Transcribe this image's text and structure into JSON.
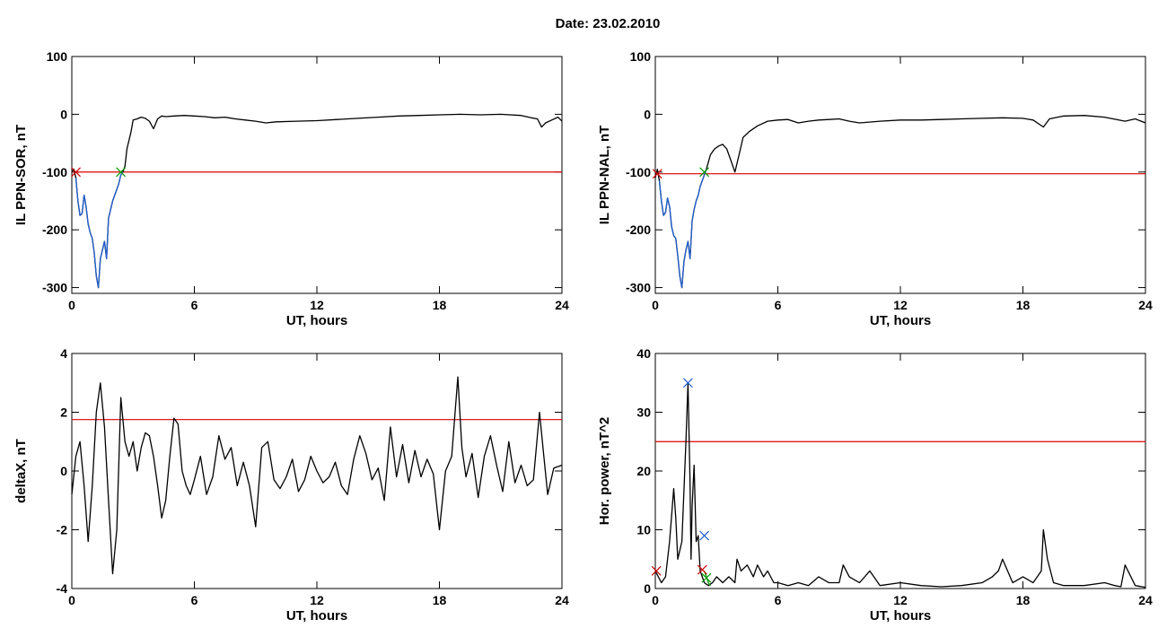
{
  "title": "Date:  23.02.2010",
  "chart_data": [
    {
      "type": "line",
      "title": "",
      "xlabel": "UT, hours",
      "ylabel": "IL PPN-SOR, nT",
      "xlim": [
        0,
        24
      ],
      "ylim": [
        -310,
        100
      ],
      "xticks": [
        0,
        6,
        12,
        18,
        24
      ],
      "yticks": [
        100,
        0,
        -100,
        -200,
        -300
      ],
      "threshold": -100,
      "series": [
        {
          "color": "#000000",
          "x": [
            0,
            0.1,
            0.2,
            0.3,
            0.4,
            0.5,
            0.6,
            0.7,
            0.8,
            0.9,
            1.0,
            1.1,
            1.2,
            1.3,
            1.4,
            1.5,
            1.6,
            1.7,
            1.8,
            1.9,
            2.0,
            2.1,
            2.2,
            2.3,
            2.4,
            2.5,
            2.6,
            2.7,
            2.8,
            2.9,
            3.0,
            3.2,
            3.4,
            3.6,
            3.8,
            4.0,
            4.2,
            4.4,
            4.6,
            5.0,
            5.5,
            6.0,
            6.5,
            7.0,
            7.5,
            8.0,
            8.5,
            9.0,
            9.5,
            10.0,
            11.0,
            12.0,
            13.0,
            14.0,
            15.0,
            16.0,
            17.0,
            18.0,
            19.0,
            20.0,
            21.0,
            22.0,
            22.5,
            22.8,
            23.0,
            23.2,
            23.5,
            23.8,
            24.0
          ],
          "y": [
            -100,
            -95,
            -110,
            -150,
            -175,
            -172,
            -140,
            -160,
            -190,
            -205,
            -215,
            -240,
            -280,
            -300,
            -250,
            -235,
            -220,
            -250,
            -180,
            -165,
            -150,
            -140,
            -130,
            -120,
            -105,
            -100,
            -90,
            -60,
            -45,
            -30,
            -10,
            -8,
            -5,
            -7,
            -12,
            -25,
            -8,
            -3,
            -4,
            -3,
            -2,
            -3,
            -4,
            -6,
            -5,
            -8,
            -10,
            -12,
            -15,
            -13,
            -12,
            -11,
            -9,
            -7,
            -5,
            -3,
            -2,
            -1,
            0,
            -1,
            0,
            -2,
            -6,
            -8,
            -22,
            -15,
            -10,
            -5,
            -12
          ]
        },
        {
          "color": "#1f5fcf",
          "x": [
            0.2,
            0.3,
            0.4,
            0.5,
            0.6,
            0.7,
            0.8,
            0.9,
            1.0,
            1.1,
            1.2,
            1.3,
            1.4,
            1.5,
            1.6,
            1.7,
            1.8,
            1.9,
            2.0,
            2.1,
            2.2,
            2.3,
            2.4,
            2.5
          ],
          "y": [
            -110,
            -150,
            -175,
            -172,
            -140,
            -160,
            -190,
            -205,
            -215,
            -240,
            -280,
            -300,
            -250,
            -235,
            -220,
            -250,
            -180,
            -165,
            -150,
            -140,
            -130,
            -120,
            -105,
            -100
          ]
        }
      ],
      "markers": [
        {
          "x": 0.2,
          "y": -100,
          "color": "#cc0000"
        },
        {
          "x": 2.4,
          "y": -100,
          "color": "#009900"
        }
      ]
    },
    {
      "type": "line",
      "title": "",
      "xlabel": "UT, hours",
      "ylabel": "IL PPN-NAL, nT",
      "xlim": [
        0,
        24
      ],
      "ylim": [
        -310,
        100
      ],
      "xticks": [
        0,
        6,
        12,
        18,
        24
      ],
      "yticks": [
        100,
        0,
        -100,
        -200,
        -300
      ],
      "threshold": -103,
      "series": [
        {
          "color": "#000000",
          "x": [
            0,
            0.1,
            0.2,
            0.3,
            0.4,
            0.5,
            0.6,
            0.7,
            0.8,
            0.9,
            1.0,
            1.1,
            1.2,
            1.3,
            1.4,
            1.5,
            1.6,
            1.7,
            1.8,
            1.9,
            2.0,
            2.1,
            2.2,
            2.3,
            2.4,
            2.5,
            2.7,
            2.9,
            3.1,
            3.3,
            3.5,
            3.7,
            3.9,
            4.1,
            4.3,
            4.6,
            5.0,
            5.5,
            6.0,
            6.5,
            7.0,
            7.5,
            8.0,
            8.5,
            9.0,
            9.5,
            10.0,
            11.0,
            12.0,
            13.0,
            14.0,
            15.0,
            16.0,
            17.0,
            18.0,
            18.5,
            19.0,
            19.3,
            20.0,
            21.0,
            22.0,
            23.0,
            23.5,
            24.0
          ],
          "y": [
            -110,
            -95,
            -115,
            -150,
            -175,
            -170,
            -145,
            -160,
            -195,
            -210,
            -215,
            -245,
            -280,
            -300,
            -255,
            -235,
            -220,
            -250,
            -185,
            -165,
            -150,
            -140,
            -125,
            -115,
            -105,
            -95,
            -70,
            -60,
            -55,
            -52,
            -60,
            -80,
            -100,
            -70,
            -40,
            -30,
            -20,
            -12,
            -10,
            -9,
            -15,
            -12,
            -10,
            -9,
            -8,
            -12,
            -15,
            -12,
            -10,
            -10,
            -9,
            -8,
            -7,
            -6,
            -7,
            -10,
            -22,
            -8,
            -3,
            -2,
            -5,
            -12,
            -8,
            -15
          ]
        },
        {
          "color": "#1f5fcf",
          "x": [
            0.2,
            0.3,
            0.4,
            0.5,
            0.6,
            0.7,
            0.8,
            0.9,
            1.0,
            1.1,
            1.2,
            1.3,
            1.4,
            1.5,
            1.6,
            1.7,
            1.8,
            1.9,
            2.0,
            2.1,
            2.2,
            2.3,
            2.4,
            2.5
          ],
          "y": [
            -115,
            -150,
            -175,
            -170,
            -145,
            -160,
            -195,
            -210,
            -215,
            -245,
            -280,
            -300,
            -255,
            -235,
            -220,
            -250,
            -185,
            -165,
            -150,
            -140,
            -125,
            -115,
            -105,
            -95
          ]
        }
      ],
      "markers": [
        {
          "x": 0.1,
          "y": -103,
          "color": "#cc0000"
        },
        {
          "x": 2.4,
          "y": -100,
          "color": "#009900"
        }
      ]
    },
    {
      "type": "line",
      "title": "",
      "xlabel": "UT, hours",
      "ylabel": "deltaX, nT",
      "xlim": [
        0,
        24
      ],
      "ylim": [
        -4,
        4
      ],
      "xticks": [
        0,
        6,
        12,
        18,
        24
      ],
      "yticks": [
        4,
        2,
        0,
        -2,
        -4
      ],
      "threshold": 1.75,
      "series": [
        {
          "color": "#000000",
          "x": [
            0,
            0.2,
            0.4,
            0.6,
            0.8,
            1.0,
            1.2,
            1.4,
            1.6,
            1.8,
            2.0,
            2.2,
            2.4,
            2.6,
            2.8,
            3.0,
            3.2,
            3.4,
            3.6,
            3.8,
            4.0,
            4.2,
            4.4,
            4.6,
            4.8,
            5.0,
            5.2,
            5.4,
            5.6,
            5.8,
            6.0,
            6.3,
            6.6,
            6.9,
            7.2,
            7.5,
            7.8,
            8.1,
            8.4,
            8.7,
            9.0,
            9.3,
            9.6,
            9.9,
            10.2,
            10.5,
            10.8,
            11.1,
            11.4,
            11.7,
            12.0,
            12.3,
            12.6,
            12.9,
            13.2,
            13.5,
            13.8,
            14.1,
            14.4,
            14.7,
            15.0,
            15.3,
            15.6,
            15.9,
            16.2,
            16.5,
            16.8,
            17.1,
            17.4,
            17.7,
            18.0,
            18.3,
            18.6,
            18.9,
            19.1,
            19.3,
            19.6,
            19.9,
            20.2,
            20.5,
            20.8,
            21.1,
            21.4,
            21.7,
            22.0,
            22.3,
            22.6,
            22.9,
            23.1,
            23.3,
            23.6,
            24.0
          ],
          "y": [
            -0.8,
            0.5,
            1.0,
            -0.5,
            -2.4,
            -0.5,
            2.0,
            3.0,
            1.5,
            -1.0,
            -3.5,
            -2.0,
            2.5,
            1.0,
            0.5,
            1.0,
            0.0,
            0.8,
            1.3,
            1.2,
            0.5,
            -0.5,
            -1.6,
            -1.0,
            0.5,
            1.8,
            1.6,
            0.0,
            -0.5,
            -0.8,
            -0.3,
            0.5,
            -0.8,
            -0.2,
            1.2,
            0.4,
            0.8,
            -0.5,
            0.3,
            -0.5,
            -1.9,
            0.8,
            1.0,
            -0.3,
            -0.6,
            -0.2,
            0.4,
            -0.7,
            -0.3,
            0.5,
            0.0,
            -0.4,
            -0.2,
            0.3,
            -0.5,
            -0.8,
            0.4,
            1.2,
            0.6,
            -0.3,
            0.1,
            -1.0,
            1.5,
            -0.2,
            0.9,
            -0.4,
            0.7,
            -0.2,
            0.4,
            -0.1,
            -2.0,
            0.0,
            0.5,
            3.2,
            0.8,
            -0.2,
            0.6,
            -0.9,
            0.5,
            1.2,
            0.2,
            -0.7,
            1.0,
            -0.4,
            0.2,
            -0.5,
            -0.3,
            2.0,
            0.6,
            -0.8,
            0.1,
            0.2
          ]
        }
      ],
      "markers": []
    },
    {
      "type": "line",
      "title": "",
      "xlabel": "UT, hours",
      "ylabel": "Hor. power, nT^2",
      "xlim": [
        0,
        24
      ],
      "ylim": [
        0,
        40
      ],
      "xticks": [
        0,
        6,
        12,
        18,
        24
      ],
      "yticks": [
        40,
        30,
        20,
        10,
        0
      ],
      "threshold": 25,
      "series": [
        {
          "color": "#000000",
          "x": [
            0,
            0.3,
            0.5,
            0.7,
            0.9,
            1.0,
            1.1,
            1.3,
            1.5,
            1.6,
            1.7,
            1.75,
            1.8,
            1.9,
            2.0,
            2.1,
            2.2,
            2.3,
            2.4,
            2.6,
            2.8,
            3.0,
            3.3,
            3.6,
            3.9,
            4.0,
            4.2,
            4.5,
            4.8,
            5.0,
            5.3,
            5.5,
            5.8,
            6.0,
            6.5,
            7.0,
            7.5,
            8.0,
            8.5,
            9.0,
            9.2,
            9.5,
            10.0,
            10.5,
            11.0,
            12.0,
            13.0,
            14.0,
            15.0,
            16.0,
            16.5,
            16.8,
            17.0,
            17.5,
            18.0,
            18.5,
            18.9,
            19.0,
            19.2,
            19.5,
            20.0,
            21.0,
            22.0,
            22.5,
            22.8,
            23.0,
            23.5,
            24.0
          ],
          "y": [
            3,
            1,
            2,
            8,
            17,
            12,
            5,
            8,
            25,
            35,
            18,
            5,
            14,
            21,
            8,
            9,
            3,
            2,
            1,
            0.5,
            1,
            2,
            1,
            2,
            1,
            5,
            3,
            4,
            2,
            4,
            2,
            3,
            1,
            1,
            0.5,
            1,
            0.5,
            2,
            1,
            1,
            4,
            2,
            1,
            3,
            0.5,
            1,
            0.5,
            0.3,
            0.5,
            1,
            2,
            3,
            5,
            1,
            2,
            1,
            3,
            10,
            5,
            1,
            0.5,
            0.5,
            1,
            0.5,
            0.3,
            4,
            0.5,
            0.2
          ]
        },
        {
          "color": "#009900",
          "x": [
            2.4,
            2.5,
            2.6,
            2.7
          ],
          "y": [
            3,
            2,
            1,
            0.5
          ]
        }
      ],
      "markers": [
        {
          "x": 1.6,
          "y": 35,
          "color": "#1f5fcf"
        },
        {
          "x": 2.4,
          "y": 9,
          "color": "#1f5fcf"
        },
        {
          "x": 2.3,
          "y": 3.2,
          "color": "#cc0000"
        },
        {
          "x": 2.5,
          "y": 1.8,
          "color": "#009900"
        },
        {
          "x": 0.05,
          "y": 3,
          "color": "#cc0000"
        }
      ]
    }
  ]
}
